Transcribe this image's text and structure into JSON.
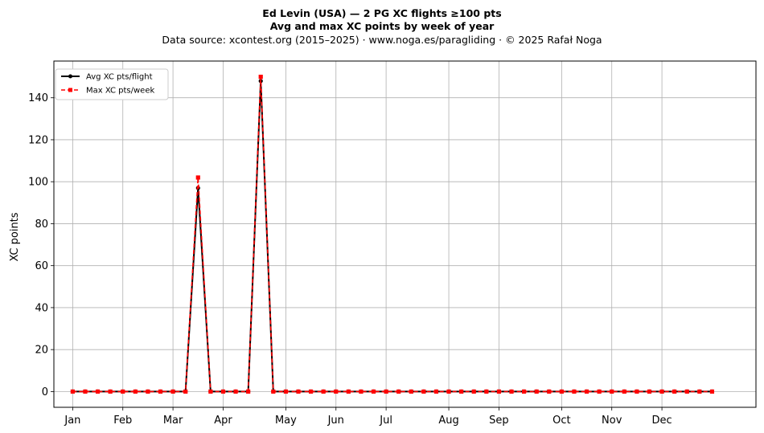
{
  "figure": {
    "title_line1": "Ed Levin (USA)  —  2 PG XC flights ≥100 pts",
    "title_line2": "Avg and max XC points by week of year",
    "subtitle": "Data source: xcontest.org (2015–2025)  ·  www.noga.es/paragliding  ·  © 2025 Rafał Noga"
  },
  "chart_data": {
    "type": "line",
    "xlabel": "",
    "ylabel": "XC points",
    "ylim": [
      -7.5,
      157.5
    ],
    "xlim": [
      -1.5,
      54.5
    ],
    "y_ticks": [
      0,
      20,
      40,
      60,
      80,
      100,
      120,
      140
    ],
    "x_ticks": [
      {
        "label": "Jan",
        "week": 0
      },
      {
        "label": "Feb",
        "week": 4
      },
      {
        "label": "Mar",
        "week": 8
      },
      {
        "label": "Apr",
        "week": 12
      },
      {
        "label": "May",
        "week": 17
      },
      {
        "label": "Jun",
        "week": 21
      },
      {
        "label": "Jul",
        "week": 25
      },
      {
        "label": "Aug",
        "week": 30
      },
      {
        "label": "Sep",
        "week": 34
      },
      {
        "label": "Oct",
        "week": 39
      },
      {
        "label": "Nov",
        "week": 43
      },
      {
        "label": "Dec",
        "week": 47
      }
    ],
    "grid": true,
    "legend_position": "top-left",
    "x": [
      0,
      1,
      2,
      3,
      4,
      5,
      6,
      7,
      8,
      9,
      10,
      11,
      12,
      13,
      14,
      15,
      16,
      17,
      18,
      19,
      20,
      21,
      22,
      23,
      24,
      25,
      26,
      27,
      28,
      29,
      30,
      31,
      32,
      33,
      34,
      35,
      36,
      37,
      38,
      39,
      40,
      41,
      42,
      43,
      44,
      45,
      46,
      47,
      48,
      49,
      50,
      51
    ],
    "series": [
      {
        "name": "Avg XC pts/flight",
        "color": "#000000",
        "style": "solid",
        "marker": "circle",
        "values": [
          0,
          0,
          0,
          0,
          0,
          0,
          0,
          0,
          0,
          0,
          97,
          0,
          0,
          0,
          0,
          148,
          0,
          0,
          0,
          0,
          0,
          0,
          0,
          0,
          0,
          0,
          0,
          0,
          0,
          0,
          0,
          0,
          0,
          0,
          0,
          0,
          0,
          0,
          0,
          0,
          0,
          0,
          0,
          0,
          0,
          0,
          0,
          0,
          0,
          0,
          0,
          0
        ]
      },
      {
        "name": "Max XC pts/week",
        "color": "#ff0000",
        "style": "dashed",
        "marker": "square",
        "values": [
          0,
          0,
          0,
          0,
          0,
          0,
          0,
          0,
          0,
          0,
          102,
          0,
          0,
          0,
          0,
          150,
          0,
          0,
          0,
          0,
          0,
          0,
          0,
          0,
          0,
          0,
          0,
          0,
          0,
          0,
          0,
          0,
          0,
          0,
          0,
          0,
          0,
          0,
          0,
          0,
          0,
          0,
          0,
          0,
          0,
          0,
          0,
          0,
          0,
          0,
          0,
          0
        ]
      }
    ]
  }
}
